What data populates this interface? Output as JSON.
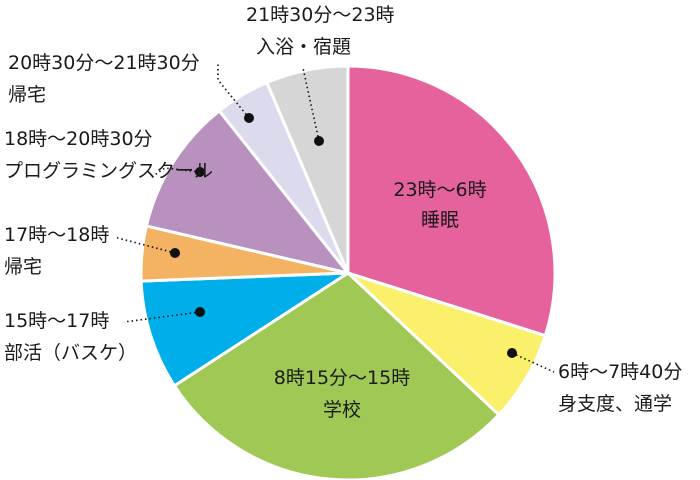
{
  "chart_data": {
    "type": "pie",
    "start": "top, clockwise",
    "slices": [
      {
        "time": "23時〜6時",
        "activity": "睡眠",
        "hours": 7,
        "color": "#e6629c"
      },
      {
        "time": "6時〜7時40分",
        "activity": "身支度、通学",
        "hours": 1.6667,
        "color": "#fbf06b"
      },
      {
        "time": "8時15分〜15時",
        "activity": "学校",
        "hours": 6.75,
        "color": "#9fc855"
      },
      {
        "time": "15時〜17時",
        "activity": "部活（バスケ）",
        "hours": 2,
        "color": "#00aeea"
      },
      {
        "time": "17時〜18時",
        "activity": "帰宅",
        "hours": 1,
        "color": "#f3b362"
      },
      {
        "time": "18時〜20時30分",
        "activity": "プログラミングスクール",
        "hours": 2.5,
        "color": "#b991bf"
      },
      {
        "time": "20時30分〜21時30分",
        "activity": "帰宅",
        "hours": 1,
        "color": "#dcdaed"
      },
      {
        "time": "21時30分〜23時",
        "activity": "入浴・宿題",
        "hours": 1.5,
        "color": "#d6d6d6"
      }
    ]
  }
}
